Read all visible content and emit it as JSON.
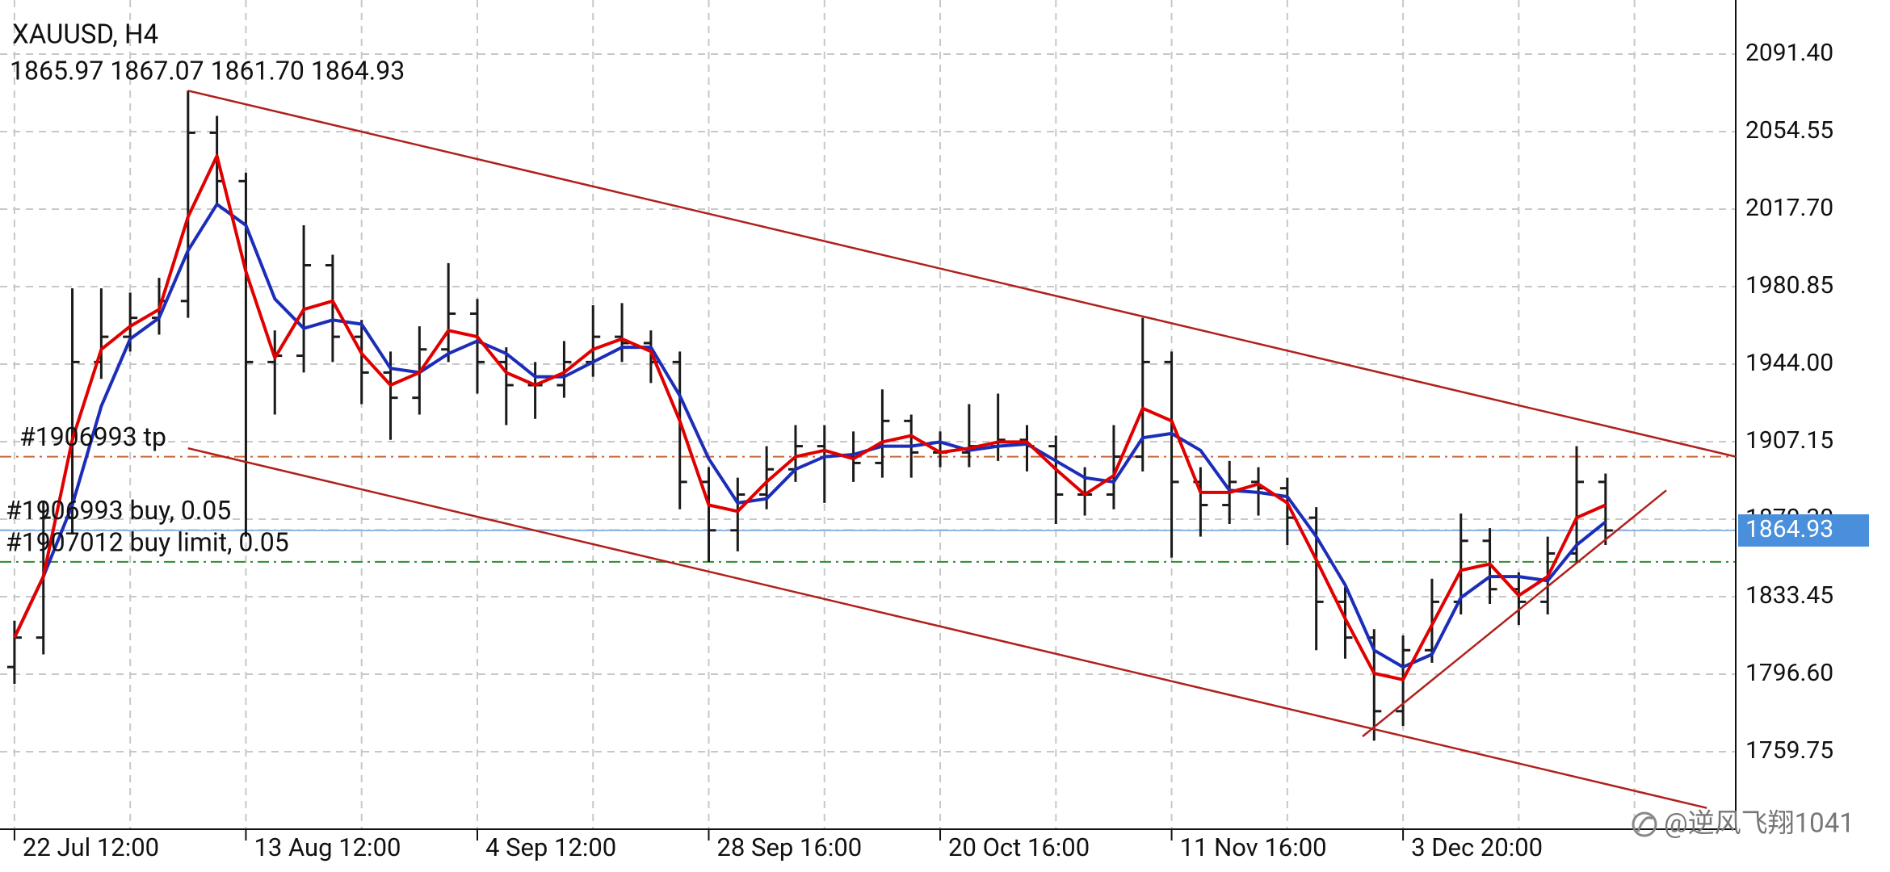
{
  "chart_data": {
    "type": "ohlc",
    "title": "XAUUSD, H4",
    "subtitle": "1865.97 1867.07 1861.70 1864.93",
    "xlim": [
      -0.5,
      59.5
    ],
    "xticks": [
      {
        "value": 0,
        "label": "22 Jul 12:00"
      },
      {
        "value": 8,
        "label": "13 Aug 12:00"
      },
      {
        "value": 16,
        "label": "4 Sep 12:00"
      },
      {
        "value": 24,
        "label": "28 Sep 16:00"
      },
      {
        "value": 32,
        "label": "20 Oct 16:00"
      },
      {
        "value": 40,
        "label": "11 Nov 16:00"
      },
      {
        "value": 48,
        "label": "3 Dec 20:00"
      }
    ],
    "ylim": [
      1722.9,
      2117.1
    ],
    "yticks": [
      {
        "value": 1759.75,
        "label": "1759.75"
      },
      {
        "value": 1796.6,
        "label": "1796.60"
      },
      {
        "value": 1833.45,
        "label": "1833.45"
      },
      {
        "value": 1870.3,
        "label": "1870.30"
      },
      {
        "value": 1907.15,
        "label": "1907.15"
      },
      {
        "value": 1944,
        "label": "1944.00"
      },
      {
        "value": 1980.85,
        "label": "1980.85"
      },
      {
        "value": 2017.7,
        "label": "2017.70"
      },
      {
        "value": 2054.55,
        "label": "2054.55"
      },
      {
        "value": 2091.4,
        "label": "2091.40"
      }
    ],
    "grid": true,
    "bar_color": "#1a1a1a",
    "open": [
      1800,
      1814,
      1871,
      1945,
      1957,
      1966,
      1974,
      2054,
      2031,
      1945,
      1948,
      1991,
      1957,
      1940,
      1928,
      1951,
      1968,
      1945,
      1934,
      1934,
      1945,
      1957,
      1954,
      1945,
      1888,
      1865,
      1882,
      1894,
      1905,
      1900,
      1897,
      1917,
      1902,
      1902,
      1905,
      1908,
      1905,
      1882,
      1882,
      1900,
      1945,
      1888,
      1877,
      1888,
      1885,
      1871,
      1831,
      1814,
      1779,
      1808,
      1831,
      1860,
      1837,
      1831,
      1854,
      1888
    ],
    "high": [
      1822,
      1879,
      1980,
      1980,
      1978,
      1985,
      2074,
      2062,
      2035,
      1960,
      2010,
      1996,
      1965,
      1950,
      1962,
      1992,
      1975,
      1952,
      1945,
      1955,
      1972,
      1973,
      1960,
      1950,
      1895,
      1890,
      1905,
      1915,
      1915,
      1912,
      1932,
      1920,
      1912,
      1925,
      1930,
      1915,
      1910,
      1895,
      1915,
      1966,
      1950,
      1895,
      1898,
      1895,
      1890,
      1876,
      1838,
      1818,
      1815,
      1842,
      1873,
      1866,
      1845,
      1862,
      1905,
      1892
    ],
    "low": [
      1792,
      1806,
      1863,
      1937,
      1950,
      1958,
      1966,
      2020,
      1862,
      1920,
      1940,
      1945,
      1925,
      1908,
      1920,
      1945,
      1930,
      1915,
      1918,
      1928,
      1938,
      1945,
      1935,
      1875,
      1850,
      1855,
      1875,
      1888,
      1878,
      1888,
      1890,
      1890,
      1895,
      1895,
      1898,
      1893,
      1868,
      1872,
      1875,
      1893,
      1852,
      1862,
      1868,
      1872,
      1858,
      1808,
      1804,
      1765,
      1772,
      1802,
      1825,
      1830,
      1820,
      1825,
      1850,
      1858
    ],
    "close": [
      1814,
      1871,
      1945,
      1957,
      1966,
      1974,
      2054,
      2031,
      1945,
      1948,
      1991,
      1957,
      1940,
      1928,
      1951,
      1968,
      1945,
      1934,
      1934,
      1945,
      1957,
      1954,
      1945,
      1888,
      1865,
      1882,
      1894,
      1905,
      1900,
      1897,
      1917,
      1902,
      1902,
      1905,
      1908,
      1905,
      1882,
      1882,
      1900,
      1945,
      1888,
      1877,
      1888,
      1885,
      1871,
      1831,
      1814,
      1779,
      1808,
      1831,
      1860,
      1837,
      1831,
      1854,
      1888,
      1864.93
    ],
    "moving_averages": [
      {
        "color": "#1c2db8",
        "values": [
          1814,
          1843,
          1877,
          1924,
          1956,
          1966,
          1998,
          2020,
          2010,
          1975,
          1961,
          1965,
          1963,
          1942,
          1940,
          1949,
          1955,
          1949,
          1938,
          1938,
          1945,
          1952,
          1952,
          1929,
          1899,
          1878,
          1880,
          1894,
          1900,
          1901,
          1905,
          1905,
          1907,
          1903,
          1905,
          1906,
          1898,
          1890,
          1888,
          1909,
          1911,
          1903,
          1884,
          1883,
          1881,
          1862,
          1839,
          1808,
          1800,
          1806,
          1833,
          1843,
          1843,
          1841,
          1858,
          1869
        ]
      },
      {
        "color": "#e00000",
        "values": [
          1814,
          1843,
          1908,
          1951,
          1962,
          1970,
          2014,
          2043,
          1988,
          1947,
          1970,
          1974,
          1949,
          1934,
          1940,
          1960,
          1957,
          1940,
          1934,
          1940,
          1951,
          1956,
          1950,
          1917,
          1877,
          1874,
          1888,
          1900,
          1903,
          1899,
          1907,
          1910,
          1902,
          1904,
          1907,
          1907,
          1894,
          1882,
          1891,
          1923,
          1917,
          1883,
          1883,
          1887,
          1878,
          1851,
          1823,
          1797,
          1794,
          1820,
          1846,
          1849,
          1834,
          1843,
          1871,
          1877
        ]
      }
    ],
    "trendlines": [
      {
        "x": [
          6,
          59.5
        ],
        "y": [
          2074,
          1900
        ],
        "color": "#b0201c"
      },
      {
        "x": [
          6,
          58.5
        ],
        "y": [
          1904,
          1733
        ],
        "color": "#b0201c"
      },
      {
        "x": [
          46.6,
          57.1
        ],
        "y": [
          1767,
          1884
        ],
        "color": "#b0201c"
      }
    ],
    "price_lines": [
      {
        "label": "#1906993 tp",
        "value": 1900,
        "color": "#c8663a"
      },
      {
        "label": "#1906993 buy, 0.05",
        "value": 1865,
        "color": "#2e8b2e"
      },
      {
        "label": "#1907012 buy limit, 0.05",
        "value": 1850,
        "color": "#2e8b2e"
      }
    ],
    "current_price": 1864.93,
    "current_price_color": "#4a8fdc",
    "watermark": "@逆风飞翔1041"
  }
}
